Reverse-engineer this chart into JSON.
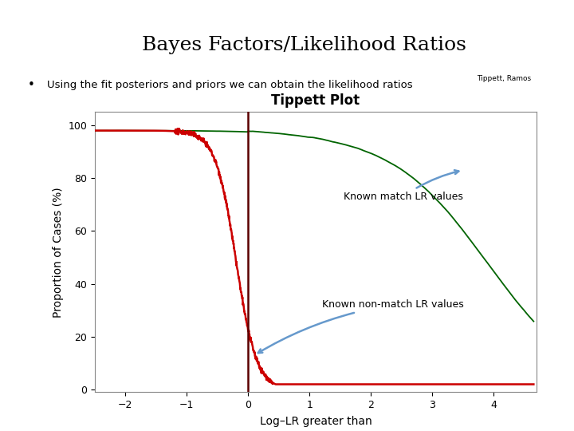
{
  "title": "Bayes Factors/Likelihood Ratios",
  "bullet_text": "Using the fit posteriors and priors we can obtain the likelihood ratios",
  "superscript": "Tippett, Ramos",
  "plot_title": "Tippett Plot",
  "xlabel": "Log–LR greater than",
  "ylabel": "Proportion of Cases (%)",
  "xlim": [
    -2.5,
    4.7
  ],
  "ylim": [
    -1,
    105
  ],
  "xticks": [
    -2,
    -1,
    0,
    1,
    2,
    3,
    4
  ],
  "yticks": [
    0,
    20,
    40,
    60,
    80,
    100
  ],
  "green_color": "#006400",
  "red_color": "#cc0000",
  "vline_color": "#5a0000",
  "annotation_color": "#6699cc",
  "bg_color": "#ffffff",
  "header_bar_color1": "#b0b0b0",
  "header_bar_color2": "#1111cc",
  "logo_bg": "#1a3a8a",
  "annotation_match": "Known match LR values",
  "annotation_nonmatch": "Known non-match LR values"
}
